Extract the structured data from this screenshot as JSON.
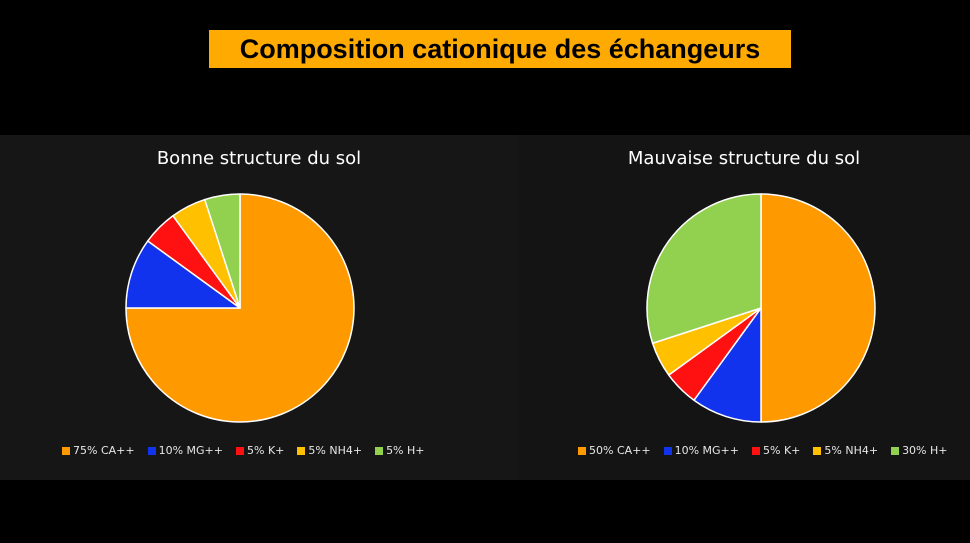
{
  "title": "Composition cationique des échangeurs",
  "colors": {
    "title_bg": "#ffaa00",
    "ca": "#ff9900",
    "mg": "#1133ee",
    "k": "#ff1111",
    "nh4": "#ffc000",
    "h": "#92d050"
  },
  "chart_data": [
    {
      "type": "pie",
      "title": "Bonne structure du sol",
      "categories": [
        "75% CA++",
        "10% MG++",
        "5% K+",
        "5% NH4+",
        "5% H+"
      ],
      "values": [
        75,
        10,
        5,
        5,
        5
      ],
      "colors": [
        "#ff9900",
        "#1133ee",
        "#ff1111",
        "#ffc000",
        "#92d050"
      ],
      "legend": "bottom"
    },
    {
      "type": "pie",
      "title": "Mauvaise structure du sol",
      "categories": [
        "50% CA++",
        "10% MG++",
        "5% K+",
        "5% NH4+",
        "30% H+"
      ],
      "values": [
        50,
        10,
        5,
        5,
        30
      ],
      "colors": [
        "#ff9900",
        "#1133ee",
        "#ff1111",
        "#ffc000",
        "#92d050"
      ],
      "legend": "bottom"
    }
  ]
}
